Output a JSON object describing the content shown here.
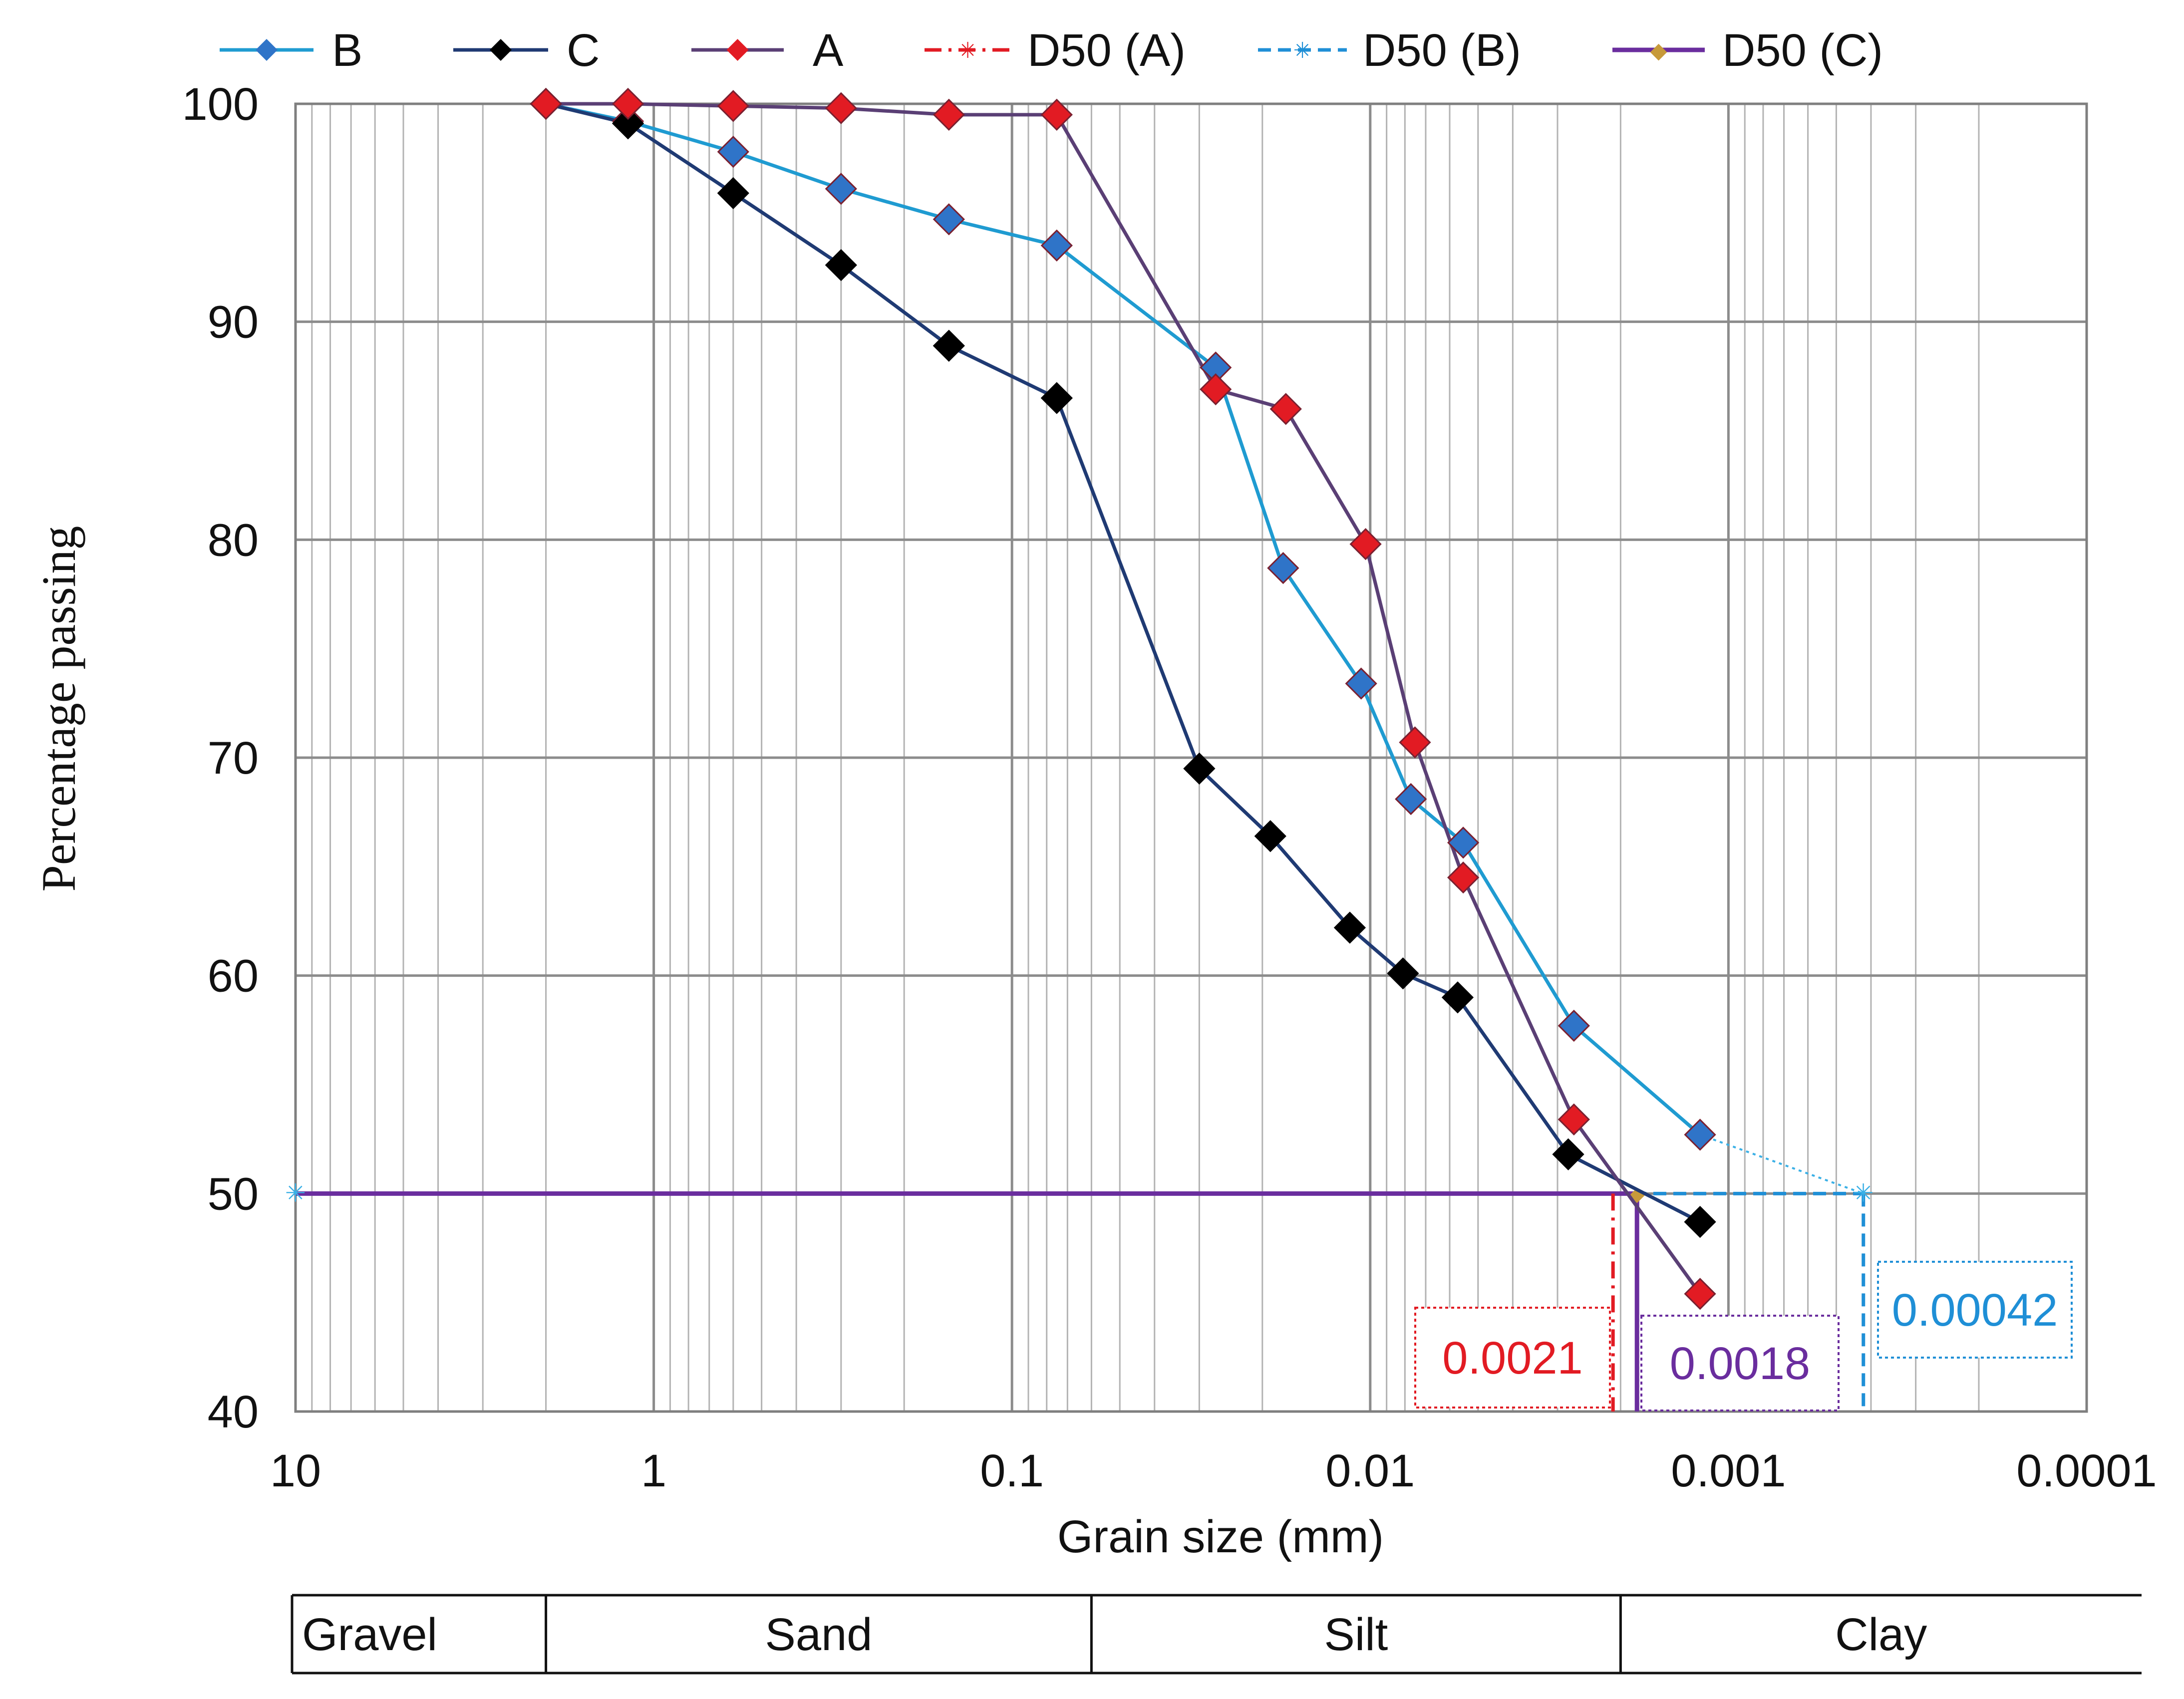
{
  "chart_data": {
    "type": "line",
    "x_scale": "log",
    "x_reversed": true,
    "xlim": [
      10,
      0.0001
    ],
    "ylim": [
      40,
      100
    ],
    "xlabel": "Grain size (mm)",
    "ylabel": "Percentage passing",
    "x_ticks": [
      {
        "value": 10,
        "label": "10"
      },
      {
        "value": 1,
        "label": "1"
      },
      {
        "value": 0.1,
        "label": "0.1"
      },
      {
        "value": 0.01,
        "label": "0.01"
      },
      {
        "value": 0.001,
        "label": "0.001"
      },
      {
        "value": 0.0001,
        "label": "0.0001"
      }
    ],
    "y_ticks": [
      {
        "value": 100,
        "label": "100"
      },
      {
        "value": 90,
        "label": "90"
      },
      {
        "value": 80,
        "label": "80"
      },
      {
        "value": 70,
        "label": "70"
      },
      {
        "value": 60,
        "label": "60"
      },
      {
        "value": 50,
        "label": "50"
      },
      {
        "value": 40,
        "label": "40"
      }
    ],
    "grid": true,
    "legend_position": "top",
    "series": [
      {
        "name": "B",
        "line_color": "#1f9bd1",
        "marker_color": "#2f74c8",
        "points": [
          {
            "x": 2.0,
            "y": 100.0
          },
          {
            "x": 1.18,
            "y": 99.2
          },
          {
            "x": 0.6,
            "y": 97.8
          },
          {
            "x": 0.3,
            "y": 96.1
          },
          {
            "x": 0.15,
            "y": 94.7
          },
          {
            "x": 0.075,
            "y": 93.5
          },
          {
            "x": 0.027,
            "y": 87.9
          },
          {
            "x": 0.0175,
            "y": 78.7
          },
          {
            "x": 0.0106,
            "y": 73.4
          },
          {
            "x": 0.0077,
            "y": 68.1
          },
          {
            "x": 0.0055,
            "y": 66.1
          },
          {
            "x": 0.0027,
            "y": 57.7
          },
          {
            "x": 0.0012,
            "y": 52.7
          }
        ]
      },
      {
        "name": "C",
        "line_color": "#1f3a73",
        "marker_color": "#000000",
        "points": [
          {
            "x": 2.0,
            "y": 100.0
          },
          {
            "x": 1.18,
            "y": 99.1
          },
          {
            "x": 0.6,
            "y": 95.9
          },
          {
            "x": 0.3,
            "y": 92.6
          },
          {
            "x": 0.15,
            "y": 88.9
          },
          {
            "x": 0.075,
            "y": 86.5
          },
          {
            "x": 0.03,
            "y": 69.5
          },
          {
            "x": 0.019,
            "y": 66.4
          },
          {
            "x": 0.0114,
            "y": 62.2
          },
          {
            "x": 0.0081,
            "y": 60.1
          },
          {
            "x": 0.0057,
            "y": 59.0
          },
          {
            "x": 0.0028,
            "y": 51.8
          },
          {
            "x": 0.0012,
            "y": 48.7
          }
        ]
      },
      {
        "name": "A",
        "line_color": "#5a3f75",
        "marker_color": "#e21b23",
        "points": [
          {
            "x": 2.0,
            "y": 100.0
          },
          {
            "x": 1.18,
            "y": 100.0
          },
          {
            "x": 0.6,
            "y": 99.9
          },
          {
            "x": 0.3,
            "y": 99.8
          },
          {
            "x": 0.15,
            "y": 99.5
          },
          {
            "x": 0.075,
            "y": 99.5
          },
          {
            "x": 0.027,
            "y": 86.9
          },
          {
            "x": 0.0172,
            "y": 86.0
          },
          {
            "x": 0.0103,
            "y": 79.8
          },
          {
            "x": 0.0075,
            "y": 70.7
          },
          {
            "x": 0.0055,
            "y": 64.5
          },
          {
            "x": 0.0027,
            "y": 53.4
          },
          {
            "x": 0.0012,
            "y": 45.4
          }
        ]
      }
    ],
    "d50_lines": [
      {
        "name": "D50 (A)",
        "x": 0.0021,
        "y": 50,
        "color": "#e21b23",
        "style": "dash-dot",
        "label": "0.0021"
      },
      {
        "name": "D50 (B)",
        "x": 0.00042,
        "y": 50,
        "color": "#1f8fd6",
        "style": "dashed",
        "label": "0.00042"
      },
      {
        "name": "D50 (C)",
        "x": 0.0018,
        "y": 50,
        "color": "#6a2d9e",
        "style": "solid",
        "label": "0.0018"
      }
    ],
    "b_extrapolation": [
      {
        "x": 0.0012,
        "y": 52.7
      },
      {
        "x": 0.00042,
        "y": 50
      }
    ],
    "soil_classes": [
      {
        "label": "Gravel",
        "from": 10,
        "to": 2
      },
      {
        "label": "Sand",
        "from": 2,
        "to": 0.06
      },
      {
        "label": "Silt",
        "from": 0.06,
        "to": 0.002
      },
      {
        "label": "Clay",
        "from": 0.002,
        "to": 6e-05
      }
    ]
  }
}
